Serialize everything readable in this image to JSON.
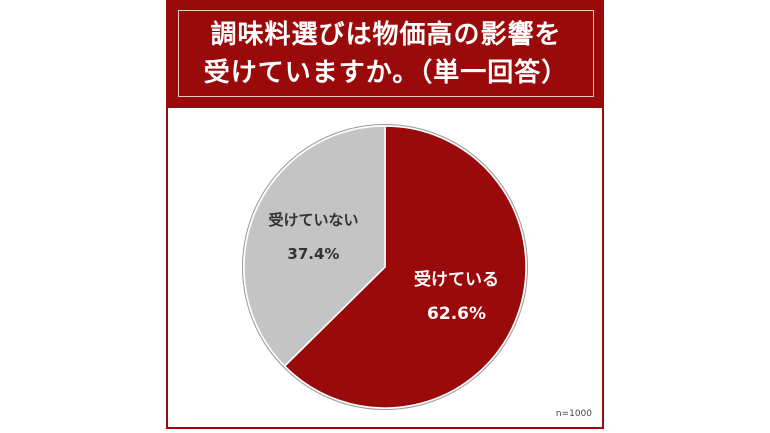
{
  "chart_data": {
    "type": "pie",
    "title_lines": [
      "調味料選びは物価高の影響を",
      "受けていますか。（単一回答）"
    ],
    "slices": [
      {
        "label": "受けている",
        "value": 62.6,
        "value_label": "62.6%",
        "color": "#9b0a0a",
        "text_color": "#ffffff"
      },
      {
        "label": "受けていない",
        "value": 37.4,
        "value_label": "37.4%",
        "color": "#c4c4c4",
        "text_color": "#333333"
      }
    ],
    "start_angle": "12 o'clock",
    "direction": "clockwise",
    "note": "n=1000"
  }
}
